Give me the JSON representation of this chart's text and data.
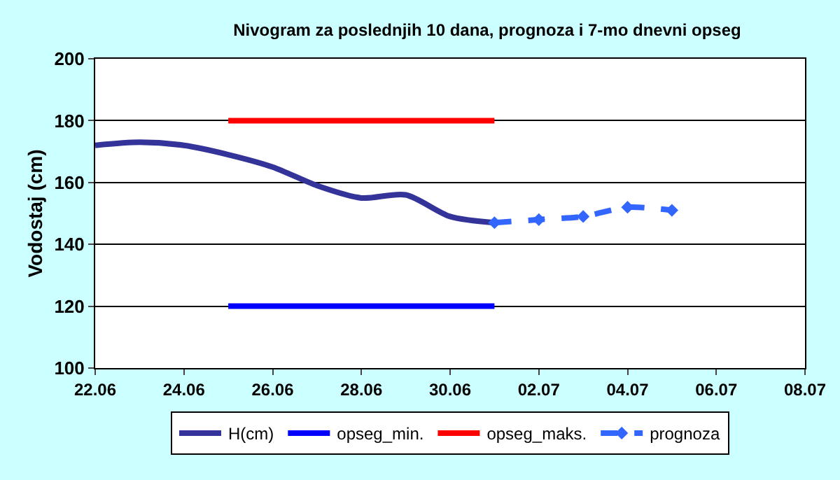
{
  "chart_data": {
    "type": "line",
    "title": "Nivogram za poslednjih 10 dana, prognoza i 7-mo dnevni opseg",
    "ylabel": "Vodostaj (cm)",
    "xlim": [
      "--06-22",
      "--07-08"
    ],
    "xticks": [
      {
        "value": "--06-22",
        "label": "22.06"
      },
      {
        "value": "--06-24",
        "label": "24.06"
      },
      {
        "value": "--06-26",
        "label": "26.06"
      },
      {
        "value": "--06-28",
        "label": "28.06"
      },
      {
        "value": "--06-30",
        "label": "30.06"
      },
      {
        "value": "--07-02",
        "label": "02.07"
      },
      {
        "value": "--07-04",
        "label": "04.07"
      },
      {
        "value": "--07-06",
        "label": "06.07"
      },
      {
        "value": "--07-08",
        "label": "08.07"
      }
    ],
    "ylim": [
      100,
      200
    ],
    "yticks": [
      100,
      120,
      140,
      160,
      180,
      200
    ],
    "grid": "y",
    "legend": "bottom",
    "series": [
      {
        "name": "H(cm)",
        "color": "#333399",
        "marker": "none",
        "line_style": "solid",
        "x": [
          "--06-22",
          "--06-23",
          "--06-24",
          "--06-25",
          "--06-26",
          "--06-27",
          "--06-28",
          "--06-29",
          "--06-30",
          "--07-01"
        ],
        "values": [
          172,
          173,
          172,
          169,
          165,
          159,
          155,
          156,
          149,
          147
        ]
      },
      {
        "name": "opseg_min.",
        "color": "#0000ff",
        "marker": "none",
        "line_style": "solid",
        "x": [
          "--06-25",
          "--07-01"
        ],
        "values": [
          120,
          120
        ]
      },
      {
        "name": "opseg_maks.",
        "color": "#ff0000",
        "marker": "none",
        "line_style": "solid",
        "x": [
          "--06-25",
          "--07-01"
        ],
        "values": [
          180,
          180
        ]
      },
      {
        "name": "prognoza",
        "color": "#3366ff",
        "marker": "diamond",
        "line_style": "dashed",
        "x": [
          "--07-01",
          "--07-02",
          "--07-03",
          "--07-04",
          "--07-05"
        ],
        "values": [
          147,
          148,
          149,
          152,
          151
        ]
      }
    ]
  }
}
